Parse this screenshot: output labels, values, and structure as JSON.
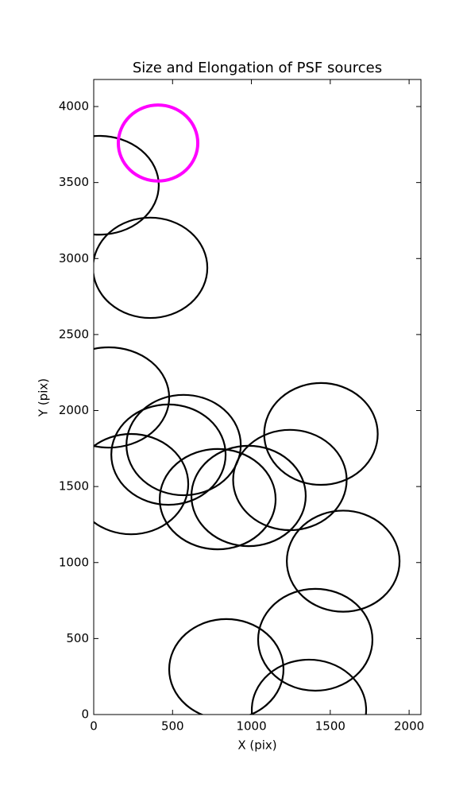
{
  "chart_data": {
    "type": "ellipse",
    "title": "Size and Elongation of PSF sources",
    "xlabel": "X (pix)",
    "ylabel": "Y (pix)",
    "xlim": [
      0,
      2075
    ],
    "ylim": [
      0,
      4178
    ],
    "xticks": [
      0,
      500,
      1000,
      1500,
      2000
    ],
    "yticks": [
      0,
      500,
      1000,
      1500,
      2000,
      2500,
      3000,
      3500,
      4000
    ],
    "series": [
      {
        "color": "#000000",
        "x": [
          35,
          358,
          96,
          570,
          474,
          237,
          786,
          982,
          1244,
          1441,
          1582,
          1405,
          841,
          1365
        ],
        "y": [
          3482,
          2939,
          2086,
          1773,
          1710,
          1516,
          1417,
          1438,
          1543,
          1846,
          1009,
          492,
          298,
          31
        ],
        "widths": [
          755,
          725,
          765,
          725,
          725,
          725,
          735,
          725,
          720,
          720,
          715,
          725,
          725,
          725
        ],
        "heights": [
          650,
          660,
          660,
          660,
          660,
          660,
          660,
          660,
          660,
          670,
          665,
          670,
          660,
          660
        ]
      },
      {
        "color": "#ff00ff",
        "x": [
          408
        ],
        "y": [
          3760
        ],
        "widths": [
          504
        ],
        "heights": [
          500
        ]
      }
    ]
  }
}
